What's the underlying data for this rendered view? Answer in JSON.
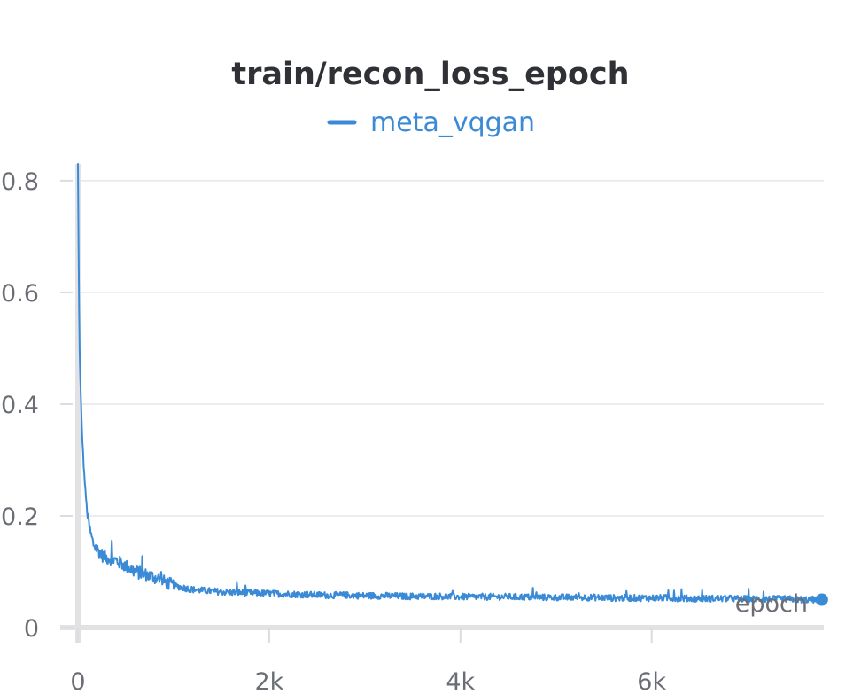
{
  "chart_data": {
    "type": "line",
    "title": "train/recon_loss_epoch",
    "xlabel": "epoch",
    "ylabel": "",
    "xlim": [
      0,
      7800
    ],
    "ylim": [
      0,
      0.83
    ],
    "grid": true,
    "legend": "top-center",
    "x_ticks": [
      {
        "value": 0,
        "label": "0"
      },
      {
        "value": 2000,
        "label": "2k"
      },
      {
        "value": 4000,
        "label": "4k"
      },
      {
        "value": 6000,
        "label": "6k"
      }
    ],
    "y_ticks": [
      {
        "value": 0,
        "label": "0"
      },
      {
        "value": 0.2,
        "label": "0.2"
      },
      {
        "value": 0.4,
        "label": "0.4"
      },
      {
        "value": 0.6,
        "label": "0.6"
      },
      {
        "value": 0.8,
        "label": "0.8"
      }
    ],
    "series": [
      {
        "name": "meta_vqgan",
        "color": "#3a8ad6",
        "x": [
          0,
          10,
          20,
          40,
          60,
          80,
          100,
          130,
          160,
          200,
          250,
          300,
          400,
          500,
          600,
          700,
          800,
          900,
          1000,
          1200,
          1400,
          1600,
          1800,
          2000,
          2200,
          2400,
          2600,
          2800,
          3000,
          3200,
          3400,
          3600,
          3800,
          4000,
          4200,
          4400,
          4600,
          4800,
          5000,
          5200,
          5400,
          5600,
          5800,
          6000,
          6200,
          6400,
          6600,
          6800,
          7000,
          7200,
          7400,
          7600,
          7780
        ],
        "values": [
          0.83,
          0.6,
          0.47,
          0.36,
          0.29,
          0.24,
          0.2,
          0.17,
          0.15,
          0.14,
          0.13,
          0.125,
          0.12,
          0.11,
          0.1,
          0.095,
          0.09,
          0.082,
          0.075,
          0.068,
          0.065,
          0.063,
          0.062,
          0.061,
          0.06,
          0.059,
          0.058,
          0.058,
          0.057,
          0.057,
          0.056,
          0.056,
          0.056,
          0.055,
          0.055,
          0.055,
          0.055,
          0.054,
          0.054,
          0.054,
          0.054,
          0.053,
          0.053,
          0.053,
          0.053,
          0.052,
          0.052,
          0.052,
          0.051,
          0.051,
          0.051,
          0.05,
          0.05
        ]
      }
    ]
  }
}
